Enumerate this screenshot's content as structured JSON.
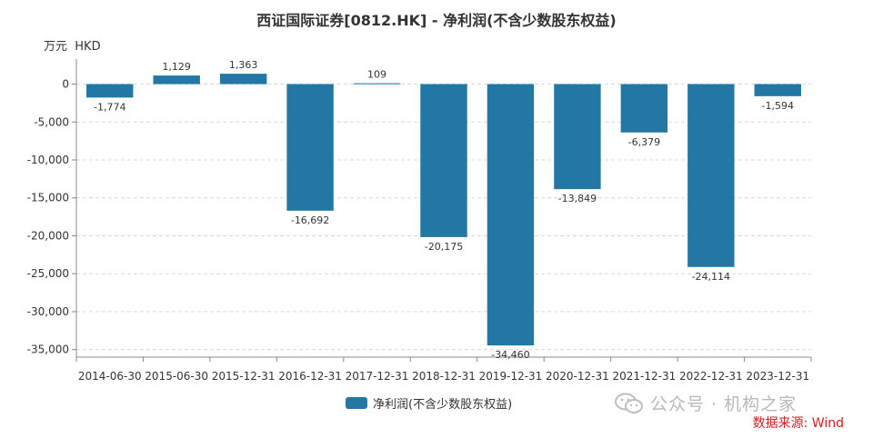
{
  "chart_data": {
    "type": "bar",
    "title": "西证国际证券[0812.HK] - 净利润(不含少数股东权益)",
    "unit_label": "万元  HKD",
    "categories": [
      "2014-06-30",
      "2015-06-30",
      "2015-12-31",
      "2016-12-31",
      "2017-12-31",
      "2018-12-31",
      "2019-12-31",
      "2020-12-31",
      "2021-12-31",
      "2022-12-31",
      "2023-12-31"
    ],
    "series": [
      {
        "name": "净利润(不含少数股东权益)",
        "values": [
          -1774,
          1129,
          1363,
          -16692,
          109,
          -20175,
          -34460,
          -13849,
          -6379,
          -24114,
          -1594
        ],
        "labels": [
          "-1,774",
          "1,129",
          "1,363",
          "-16,692",
          "109",
          "-20,175",
          "-34,460",
          "-13,849",
          "-6,379",
          "-24,114",
          "-1,594"
        ],
        "color": "#2277a4"
      }
    ],
    "yticks": [
      0,
      -5000,
      -10000,
      -15000,
      -20000,
      -25000,
      -30000,
      -35000
    ],
    "ytick_labels": [
      "0",
      "-5,000",
      "-10,000",
      "-15,000",
      "-20,000",
      "-25,000",
      "-30,000",
      "-35,000"
    ],
    "ylim": [
      -36000,
      3300
    ],
    "grid": true,
    "legend_position": "bottom"
  },
  "watermark": {
    "text": "公众号 · 机构之家",
    "icon": "wechat-icon"
  },
  "source": "数据来源: Wind"
}
